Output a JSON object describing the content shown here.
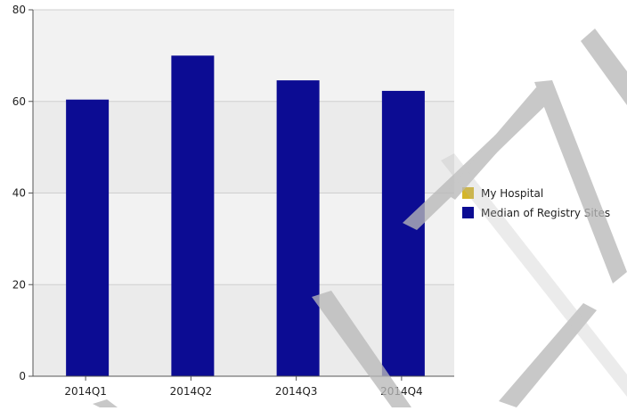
{
  "chart_data": {
    "type": "bar",
    "categories": [
      "2014Q1",
      "2014Q2",
      "2014Q3",
      "2014Q4"
    ],
    "series": [
      {
        "name": "My Hospital",
        "color": "#d4b52a",
        "values": [
          null,
          null,
          null,
          null
        ]
      },
      {
        "name": "Median of Registry Sites",
        "color": "#0c0c93",
        "values": [
          60.4,
          70.0,
          64.6,
          62.3
        ]
      }
    ],
    "ylim": [
      0,
      80
    ],
    "yticks": [
      "0",
      "20",
      "40",
      "60",
      "80"
    ],
    "grid": true,
    "band_colors": [
      "#ebebeb",
      "#f2f2f2"
    ],
    "legend_position": "right",
    "watermark": "ANM"
  }
}
